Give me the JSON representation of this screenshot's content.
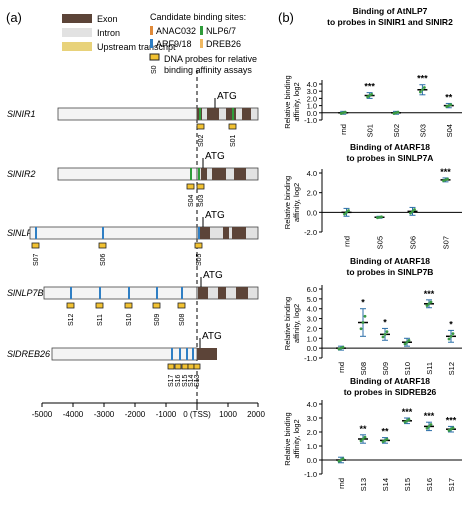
{
  "panel_a": {
    "label": "(a)",
    "legend": {
      "exon": "Exon",
      "intron": "Intron",
      "upstream": "Upstream transcript",
      "sites_title": "Candidate binding sites:",
      "anac": "ANAC032",
      "nlp": "NLP6/7",
      "arf": "ARF9/18",
      "dreb": "DREB26",
      "probe_line1": "DNA probes for relative",
      "probe_line2": "binding affinity assays",
      "probe_example": "S0"
    },
    "colors": {
      "exon": "#5c4438",
      "intron": "#e2e2e2",
      "upstream": "#e8d27a",
      "anac": "#e08a3a",
      "nlp": "#2f9c3a",
      "arf": "#2f7fc4",
      "dreb": "#f0b860",
      "probe_fill": "#f2c232"
    },
    "atg_label": "ATG",
    "axis": {
      "ticks": [
        "-5000",
        "-4000",
        "-3000",
        "-2000",
        "-1000",
        "0 (TSS)",
        "1000",
        "2000"
      ]
    },
    "genes": [
      {
        "name": "SlNIR1",
        "probes": [
          "S02",
          "S01"
        ]
      },
      {
        "name": "SlNIR2",
        "probes": [
          "S04",
          "S03"
        ]
      },
      {
        "name": "SlNLP7A",
        "probes": [
          "S07",
          "S06",
          "S05"
        ]
      },
      {
        "name": "SlNLP7B",
        "probes": [
          "S12",
          "S11",
          "S10",
          "S09",
          "S08"
        ]
      },
      {
        "name": "SlDREB26",
        "probes": [
          "S17",
          "S16",
          "S15",
          "S14",
          "S13"
        ]
      }
    ]
  },
  "panel_b": {
    "label": "(b)",
    "y_label_1": "Relative binding",
    "y_label_2": "affinity, log2",
    "charts": [
      {
        "title1": "Binding of AtNLP7",
        "title2": "to probes in SlNIR1 and SlNIR2",
        "categories": [
          "rnd",
          "S01",
          "S02",
          "S03",
          "S04"
        ],
        "ticks": [
          "4.0",
          "3.0",
          "2.0",
          "1.0",
          "0.0",
          "-1.0"
        ],
        "stars": [
          "",
          "***",
          "",
          "***",
          "**"
        ]
      },
      {
        "title1": "Binding of AtARF18",
        "title2": "to probes in SlNLP7A",
        "categories": [
          "rnd",
          "S05",
          "S06",
          "S07"
        ],
        "ticks": [
          "4.0",
          "2.0",
          "0.0",
          "-2.0"
        ],
        "stars": [
          "",
          "",
          "",
          "***"
        ]
      },
      {
        "title1": "Binding of AtARF18",
        "title2": "to probes in SlNLP7B",
        "categories": [
          "rnd",
          "S08",
          "S09",
          "S10",
          "S11",
          "S12"
        ],
        "ticks": [
          "6.0",
          "5.0",
          "4.0",
          "3.0",
          "2.0",
          "1.0",
          "0.0",
          "-1.0"
        ],
        "stars": [
          "",
          "*",
          "*",
          "",
          "***",
          "*"
        ]
      },
      {
        "title1": "Binding of AtARF18",
        "title2": "to probes in SlDREB26",
        "categories": [
          "rnd",
          "S13",
          "S14",
          "S15",
          "S16",
          "S17"
        ],
        "ticks": [
          "4.0",
          "3.0",
          "2.0",
          "1.0",
          "0.0",
          "-1.0"
        ],
        "stars": [
          "",
          "**",
          "**",
          "***",
          "***",
          "***"
        ]
      }
    ]
  },
  "chart_data": [
    {
      "type": "scatter",
      "title": "Binding of AtNLP7 to probes in SlNIR1 and SlNIR2",
      "ylabel": "Relative binding affinity, log2",
      "ylim": [
        -1,
        4
      ],
      "categories": [
        "rnd",
        "S01",
        "S02",
        "S03",
        "S04"
      ],
      "values": [
        0.0,
        2.4,
        0.0,
        3.2,
        1.0
      ],
      "errors": [
        0.2,
        0.4,
        0.2,
        0.7,
        0.3
      ]
    },
    {
      "type": "scatter",
      "title": "Binding of AtARF18 to probes in SlNLP7A",
      "ylabel": "Relative binding affinity, log2",
      "ylim": [
        -2,
        4
      ],
      "categories": [
        "rnd",
        "S05",
        "S06",
        "S07"
      ],
      "values": [
        0.0,
        -0.5,
        0.1,
        3.3
      ],
      "errors": [
        0.4,
        0.1,
        0.4,
        0.2
      ]
    },
    {
      "type": "scatter",
      "title": "Binding of AtARF18 to probes in SlNLP7B",
      "ylabel": "Relative binding affinity, log2",
      "ylim": [
        -1,
        6
      ],
      "categories": [
        "rnd",
        "S08",
        "S09",
        "S10",
        "S11",
        "S12"
      ],
      "values": [
        0.0,
        2.6,
        1.4,
        0.6,
        4.5,
        1.2
      ],
      "errors": [
        0.2,
        1.4,
        0.6,
        0.4,
        0.4,
        0.6
      ]
    },
    {
      "type": "scatter",
      "title": "Binding of AtARF18 to probes in SlDREB26",
      "ylabel": "Relative binding affinity, log2",
      "ylim": [
        -1,
        4
      ],
      "categories": [
        "rnd",
        "S13",
        "S14",
        "S15",
        "S16",
        "S17"
      ],
      "values": [
        0.0,
        1.5,
        1.4,
        2.8,
        2.4,
        2.2
      ],
      "errors": [
        0.2,
        0.3,
        0.2,
        0.2,
        0.3,
        0.2
      ]
    }
  ]
}
